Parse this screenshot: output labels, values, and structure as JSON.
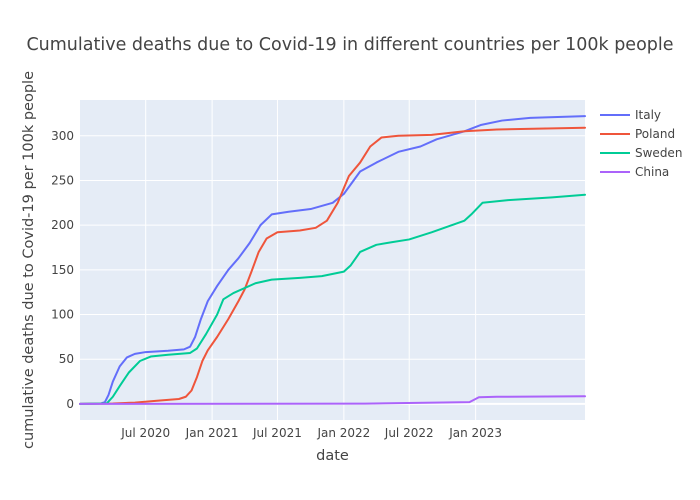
{
  "chart_data": {
    "type": "line",
    "title": "Cumulative deaths due to Covid-19 in different countries per 100k people",
    "xlabel": "date",
    "ylabel": "cumulative deaths due to Covid-19 per 100k people",
    "x_range": [
      "2020-01-01",
      "2023-10-31"
    ],
    "y_range": [
      -18,
      340
    ],
    "x_ticks": [
      {
        "date": "2020-07-01",
        "label": "Jul 2020"
      },
      {
        "date": "2021-01-01",
        "label": "Jan 2021"
      },
      {
        "date": "2021-07-01",
        "label": "Jul 2021"
      },
      {
        "date": "2022-01-01",
        "label": "Jan 2022"
      },
      {
        "date": "2022-07-01",
        "label": "Jul 2022"
      },
      {
        "date": "2023-01-01",
        "label": "Jan 2023"
      }
    ],
    "y_ticks": [
      0,
      50,
      100,
      150,
      200,
      250,
      300
    ],
    "grid": true,
    "legend_position": "top-right",
    "background_color": "#e5ecf6",
    "series": [
      {
        "name": "Italy",
        "color": "#636efa",
        "points": [
          [
            "2020-01-01",
            0
          ],
          [
            "2020-02-28",
            0.5
          ],
          [
            "2020-03-10",
            2
          ],
          [
            "2020-03-20",
            10
          ],
          [
            "2020-04-01",
            25
          ],
          [
            "2020-04-20",
            42
          ],
          [
            "2020-05-10",
            52
          ],
          [
            "2020-06-01",
            56
          ],
          [
            "2020-07-01",
            58
          ],
          [
            "2020-09-01",
            59.5
          ],
          [
            "2020-10-15",
            61
          ],
          [
            "2020-11-01",
            64
          ],
          [
            "2020-11-15",
            75
          ],
          [
            "2020-12-01",
            95
          ],
          [
            "2020-12-20",
            115
          ],
          [
            "2021-01-15",
            132
          ],
          [
            "2021-02-15",
            150
          ],
          [
            "2021-03-15",
            163
          ],
          [
            "2021-04-15",
            180
          ],
          [
            "2021-05-15",
            200
          ],
          [
            "2021-06-15",
            212
          ],
          [
            "2021-08-01",
            215
          ],
          [
            "2021-10-01",
            218
          ],
          [
            "2021-12-01",
            225
          ],
          [
            "2022-01-01",
            235
          ],
          [
            "2022-02-15",
            260
          ],
          [
            "2022-04-01",
            270
          ],
          [
            "2022-06-01",
            282
          ],
          [
            "2022-08-01",
            288
          ],
          [
            "2022-09-15",
            296
          ],
          [
            "2022-12-01",
            305
          ],
          [
            "2023-01-15",
            312
          ],
          [
            "2023-03-15",
            317
          ],
          [
            "2023-06-01",
            320
          ],
          [
            "2023-10-31",
            322
          ]
        ]
      },
      {
        "name": "Poland",
        "color": "#ef553b",
        "points": [
          [
            "2020-01-01",
            0
          ],
          [
            "2020-04-01",
            0.5
          ],
          [
            "2020-06-01",
            1.5
          ],
          [
            "2020-08-01",
            3.5
          ],
          [
            "2020-10-01",
            5.5
          ],
          [
            "2020-10-20",
            8
          ],
          [
            "2020-11-05",
            15
          ],
          [
            "2020-11-20",
            30
          ],
          [
            "2020-12-05",
            48
          ],
          [
            "2020-12-20",
            60
          ],
          [
            "2021-01-15",
            75
          ],
          [
            "2021-02-15",
            95
          ],
          [
            "2021-03-15",
            115
          ],
          [
            "2021-04-01",
            128
          ],
          [
            "2021-04-20",
            148
          ],
          [
            "2021-05-10",
            170
          ],
          [
            "2021-06-01",
            185
          ],
          [
            "2021-07-01",
            192
          ],
          [
            "2021-09-01",
            194
          ],
          [
            "2021-10-15",
            197
          ],
          [
            "2021-11-15",
            205
          ],
          [
            "2021-12-15",
            225
          ],
          [
            "2022-01-15",
            255
          ],
          [
            "2022-02-15",
            270
          ],
          [
            "2022-03-15",
            288
          ],
          [
            "2022-04-15",
            298
          ],
          [
            "2022-06-01",
            300
          ],
          [
            "2022-09-01",
            301
          ],
          [
            "2022-12-01",
            305
          ],
          [
            "2023-03-01",
            307
          ],
          [
            "2023-10-31",
            309
          ]
        ]
      },
      {
        "name": "Sweden",
        "color": "#00cc96",
        "points": [
          [
            "2020-01-01",
            0
          ],
          [
            "2020-03-15",
            0.5
          ],
          [
            "2020-04-01",
            8
          ],
          [
            "2020-04-20",
            20
          ],
          [
            "2020-05-15",
            35
          ],
          [
            "2020-06-15",
            48
          ],
          [
            "2020-07-15",
            53
          ],
          [
            "2020-09-01",
            55
          ],
          [
            "2020-11-01",
            57
          ],
          [
            "2020-11-20",
            62
          ],
          [
            "2020-12-15",
            78
          ],
          [
            "2021-01-15",
            100
          ],
          [
            "2021-02-01",
            117
          ],
          [
            "2021-03-01",
            124
          ],
          [
            "2021-05-01",
            135
          ],
          [
            "2021-06-15",
            139
          ],
          [
            "2021-09-01",
            141
          ],
          [
            "2021-11-01",
            143
          ],
          [
            "2022-01-01",
            148
          ],
          [
            "2022-01-20",
            155
          ],
          [
            "2022-02-15",
            170
          ],
          [
            "2022-04-01",
            178
          ],
          [
            "2022-05-15",
            181
          ],
          [
            "2022-07-01",
            184
          ],
          [
            "2022-09-01",
            192
          ],
          [
            "2022-12-01",
            205
          ],
          [
            "2022-12-20",
            212
          ],
          [
            "2023-01-20",
            225
          ],
          [
            "2023-04-01",
            228
          ],
          [
            "2023-08-01",
            231
          ],
          [
            "2023-10-31",
            234
          ]
        ]
      },
      {
        "name": "China",
        "color": "#ab63fa",
        "points": [
          [
            "2020-01-01",
            0
          ],
          [
            "2022-03-01",
            0.3
          ],
          [
            "2022-12-15",
            2
          ],
          [
            "2023-01-10",
            7.5
          ],
          [
            "2023-03-01",
            8
          ],
          [
            "2023-10-31",
            8.5
          ]
        ]
      }
    ]
  }
}
